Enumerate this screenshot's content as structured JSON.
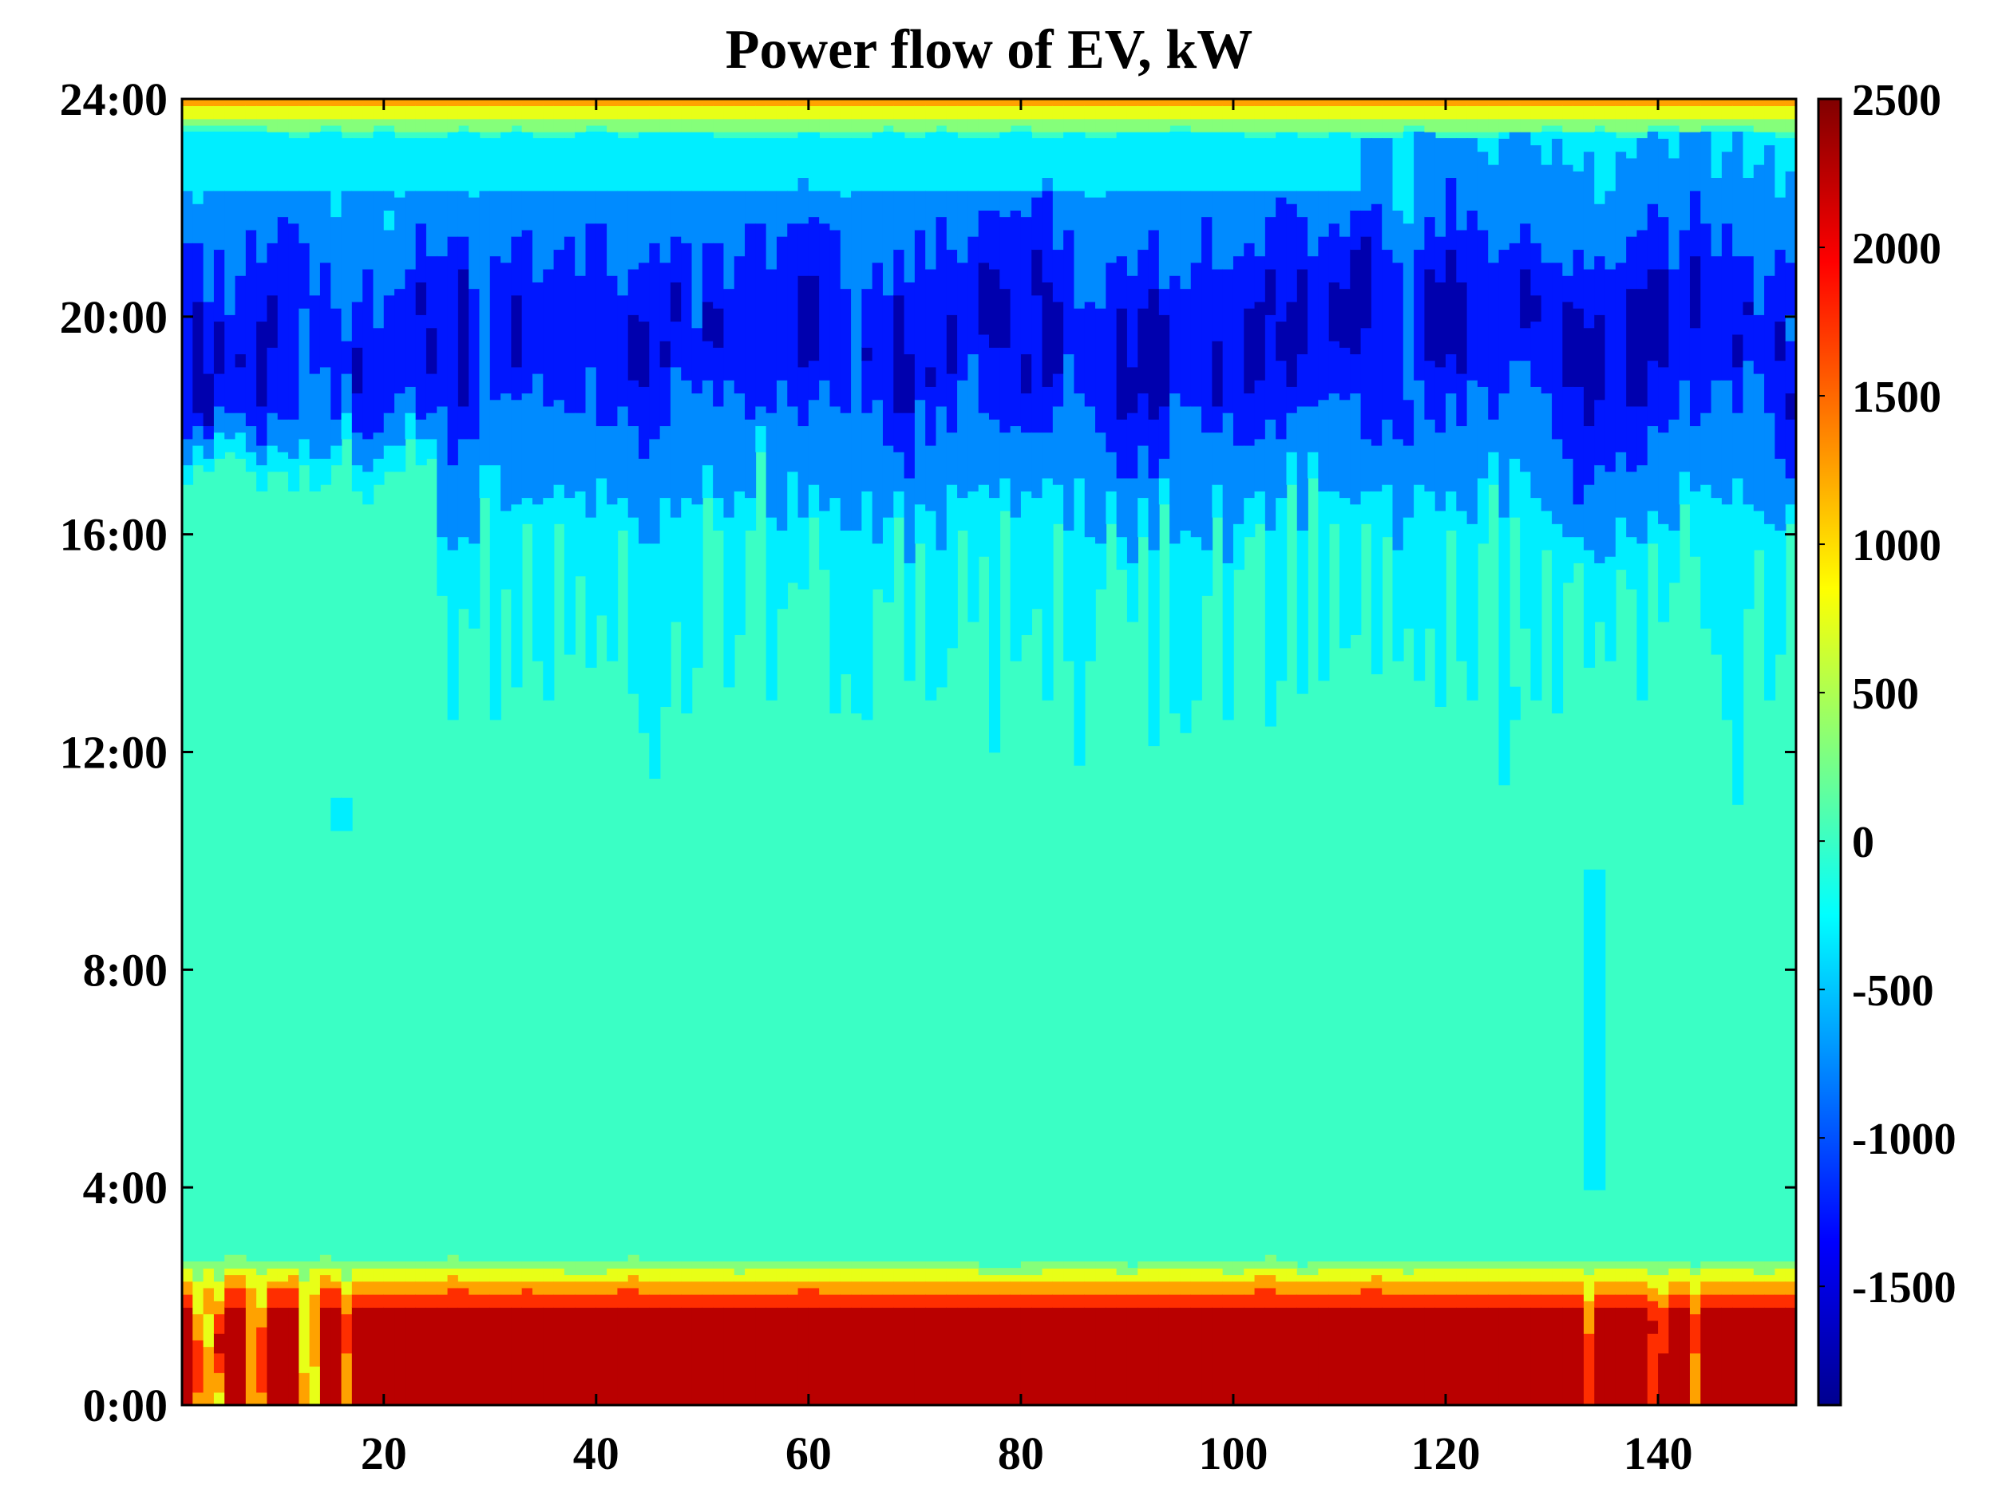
{
  "chart_data": {
    "type": "heatmap",
    "subtype": "filled-contour",
    "title": "Power flow of EV, kW",
    "xlabel": "",
    "ylabel": "",
    "x_ticks": [
      20,
      40,
      60,
      80,
      100,
      120,
      140
    ],
    "x_tick_labels": [
      "20",
      "40",
      "60",
      "80",
      "100",
      "120",
      "140"
    ],
    "xlim": [
      1,
      153
    ],
    "y_ticks": [
      0,
      4,
      8,
      12,
      16,
      20,
      24
    ],
    "y_tick_labels": [
      "0:00",
      "4:00",
      "8:00",
      "12:00",
      "16:00",
      "20:00",
      "24:00"
    ],
    "ylim": [
      0,
      24
    ],
    "colorbar": {
      "ticks": [
        2500,
        2000,
        1500,
        1000,
        500,
        0,
        -500,
        -1000,
        -1500
      ],
      "tick_labels": [
        "2500",
        "2000",
        "1500",
        "1000",
        "500",
        "0",
        "-500",
        "-1000",
        "-1500"
      ],
      "range": [
        -1900,
        2500
      ],
      "colormap": "jet"
    },
    "grid": false,
    "contour_levels": [
      -1500,
      -1000,
      -500,
      -150,
      150,
      500,
      1000,
      1500,
      2000
    ],
    "profile": {
      "charging_hours": [
        0,
        2.7
      ],
      "charging_peak_kW": 2500,
      "evening_upper_edge_hours": 23.4,
      "idle_value_kW": 0,
      "discharge_onset_range_hours": [
        10.2,
        17.6
      ],
      "discharge_peak_hours": [
        18,
        21.5
      ],
      "discharge_peak_kW": -1500
    },
    "anomalies": [
      {
        "x": 134,
        "y_range": [
          4,
          9.8
        ],
        "value_kW": -400
      },
      {
        "x": 16,
        "y": 10.9,
        "value_kW": -300
      },
      {
        "x": 126,
        "y": 12.9,
        "value_kW": -400
      }
    ]
  }
}
